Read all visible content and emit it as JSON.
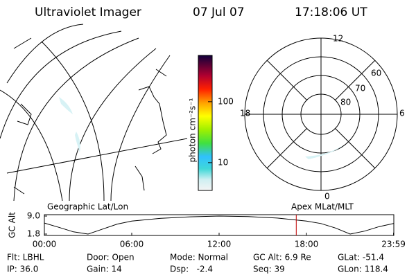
{
  "header": {
    "title": "Ultraviolet Imager",
    "date": "07 Jul 07",
    "time": "17:18:06 UT"
  },
  "colorbar": {
    "label": "photon cm⁻²s⁻¹",
    "scale": "log",
    "lim": [
      3.5,
      575
    ],
    "ticks": [
      10,
      100
    ]
  },
  "map": {
    "label": "Geographic Lat/Lon"
  },
  "polar": {
    "label": "Apex MLat/MLT",
    "hours": [
      "12",
      "18",
      "6",
      "0"
    ],
    "lats": [
      "60",
      "70",
      "80"
    ]
  },
  "altitude": {
    "ylabel": "GC Alt",
    "ylim": [
      1.8,
      9.0
    ],
    "yticks": [
      {
        "value": 9.0,
        "label": "9.0"
      },
      {
        "value": 1.8,
        "label": "1.8"
      }
    ],
    "xlim": [
      0,
      24
    ],
    "xticks": [
      {
        "value": 0,
        "label": "00:00"
      },
      {
        "value": 6,
        "label": "06:00"
      },
      {
        "value": 12,
        "label": "12:00"
      },
      {
        "value": 18,
        "label": "18:00"
      },
      {
        "value": 23.98,
        "label": "23:59"
      }
    ],
    "x": [
      0,
      1,
      2,
      3,
      4,
      5,
      6,
      8,
      10,
      12,
      14,
      16,
      18,
      19,
      20,
      21,
      22,
      23,
      23.98
    ],
    "values": [
      6.2,
      4.5,
      2.7,
      1.8,
      3.8,
      5.8,
      7.0,
      8.1,
      8.7,
      9.0,
      8.8,
      8.2,
      7.0,
      6.0,
      4.2,
      1.8,
      3.0,
      4.8,
      6.0
    ],
    "marker": 17.3
  },
  "status": [
    [
      "Flt: LBHL",
      "Door: Open",
      "Mode: Normal",
      "GC Alt: 6.9 Re",
      "GLat: -51.4"
    ],
    [
      "IP: 36.0",
      "Gain: 14",
      "Dsp:   -2.4",
      "Seq: 39",
      "GLon: 118.4"
    ]
  ]
}
